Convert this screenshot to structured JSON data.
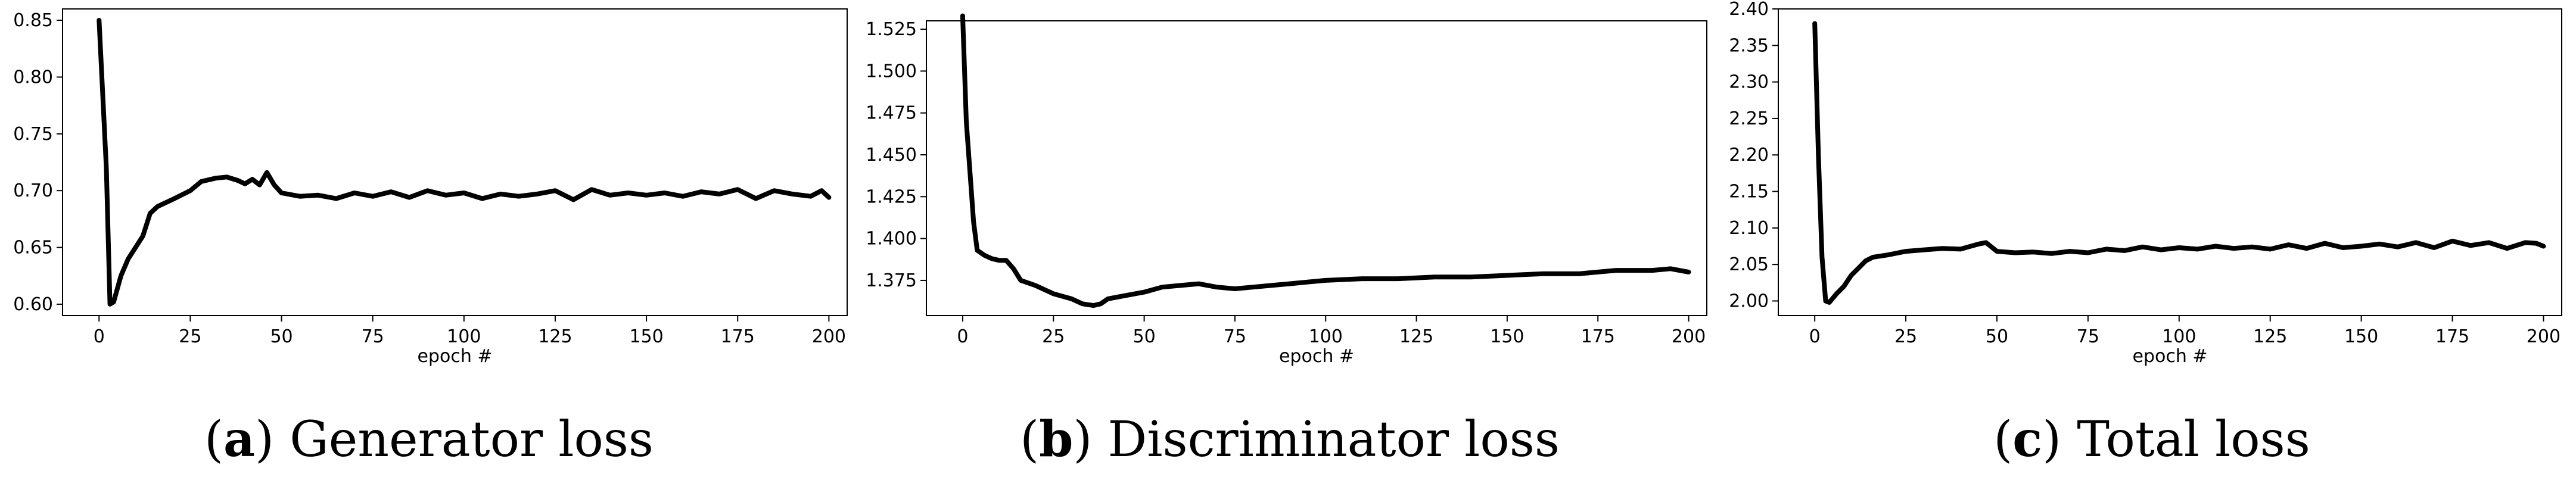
{
  "chart_data": [
    {
      "type": "line",
      "xlabel": "epoch #",
      "xlim": [
        -10,
        205
      ],
      "ylim": [
        0.59,
        0.86
      ],
      "xticks": [
        0,
        25,
        50,
        75,
        100,
        125,
        150,
        175,
        200
      ],
      "yticks": [
        0.6,
        0.65,
        0.7,
        0.75,
        0.8,
        0.85
      ],
      "ytick_decimals": 2,
      "grid": false,
      "caption": {
        "letter": "a",
        "text": "Generator loss"
      },
      "series": [
        {
          "color": "#000000",
          "x": [
            0,
            2,
            3,
            4,
            6,
            8,
            10,
            12,
            14,
            16,
            20,
            25,
            28,
            32,
            35,
            38,
            40,
            42,
            44,
            46,
            48,
            50,
            55,
            60,
            65,
            70,
            75,
            80,
            85,
            90,
            95,
            100,
            105,
            110,
            115,
            120,
            125,
            130,
            135,
            140,
            145,
            150,
            155,
            160,
            165,
            170,
            175,
            180,
            185,
            190,
            195,
            198,
            200
          ],
          "y": [
            0.85,
            0.72,
            0.6,
            0.602,
            0.625,
            0.64,
            0.65,
            0.66,
            0.68,
            0.686,
            0.692,
            0.7,
            0.708,
            0.711,
            0.712,
            0.709,
            0.706,
            0.71,
            0.705,
            0.716,
            0.705,
            0.698,
            0.695,
            0.696,
            0.693,
            0.698,
            0.695,
            0.699,
            0.694,
            0.7,
            0.696,
            0.698,
            0.693,
            0.697,
            0.695,
            0.697,
            0.7,
            0.692,
            0.701,
            0.696,
            0.698,
            0.696,
            0.698,
            0.695,
            0.699,
            0.697,
            0.701,
            0.693,
            0.7,
            0.697,
            0.695,
            0.7,
            0.694
          ]
        }
      ]
    },
    {
      "type": "line",
      "xlabel": "epoch #",
      "xlim": [
        -10,
        205
      ],
      "ylim": [
        1.354,
        1.53
      ],
      "xticks": [
        0,
        25,
        50,
        75,
        100,
        125,
        150,
        175,
        200
      ],
      "yticks": [
        1.375,
        1.4,
        1.425,
        1.45,
        1.475,
        1.5,
        1.525
      ],
      "ytick_decimals": 3,
      "grid": false,
      "caption": {
        "letter": "b",
        "text": "Discriminator loss"
      },
      "series": [
        {
          "color": "#000000",
          "x": [
            0,
            1,
            2,
            3,
            4,
            6,
            8,
            10,
            12,
            14,
            16,
            20,
            25,
            30,
            33,
            36,
            38,
            40,
            45,
            50,
            55,
            60,
            65,
            70,
            75,
            80,
            85,
            90,
            95,
            100,
            110,
            120,
            130,
            140,
            150,
            160,
            170,
            180,
            190,
            195,
            200
          ],
          "y": [
            1.533,
            1.47,
            1.44,
            1.41,
            1.393,
            1.39,
            1.388,
            1.387,
            1.387,
            1.382,
            1.375,
            1.372,
            1.367,
            1.364,
            1.361,
            1.36,
            1.361,
            1.364,
            1.366,
            1.368,
            1.371,
            1.372,
            1.373,
            1.371,
            1.37,
            1.371,
            1.372,
            1.373,
            1.374,
            1.375,
            1.376,
            1.376,
            1.377,
            1.377,
            1.378,
            1.379,
            1.379,
            1.381,
            1.381,
            1.382,
            1.38
          ]
        }
      ]
    },
    {
      "type": "line",
      "xlabel": "epoch #",
      "xlim": [
        -10,
        205
      ],
      "ylim": [
        1.98,
        2.4
      ],
      "xticks": [
        0,
        25,
        50,
        75,
        100,
        125,
        150,
        175,
        200
      ],
      "yticks": [
        2.0,
        2.05,
        2.1,
        2.15,
        2.2,
        2.25,
        2.3,
        2.35,
        2.4
      ],
      "ytick_decimals": 2,
      "grid": false,
      "caption": {
        "letter": "c",
        "text": "Total loss"
      },
      "series": [
        {
          "color": "#000000",
          "x": [
            0,
            1,
            2,
            3,
            4,
            6,
            8,
            10,
            12,
            14,
            16,
            20,
            25,
            30,
            35,
            40,
            45,
            47,
            50,
            55,
            60,
            65,
            70,
            75,
            80,
            85,
            90,
            95,
            100,
            105,
            110,
            115,
            120,
            125,
            130,
            135,
            140,
            145,
            150,
            155,
            160,
            165,
            170,
            175,
            180,
            185,
            190,
            195,
            198,
            200
          ],
          "y": [
            2.38,
            2.2,
            2.06,
            2.0,
            1.998,
            2.01,
            2.02,
            2.035,
            2.045,
            2.055,
            2.06,
            2.063,
            2.068,
            2.07,
            2.072,
            2.071,
            2.078,
            2.08,
            2.068,
            2.066,
            2.067,
            2.065,
            2.068,
            2.066,
            2.071,
            2.069,
            2.074,
            2.07,
            2.073,
            2.071,
            2.075,
            2.072,
            2.074,
            2.071,
            2.077,
            2.072,
            2.079,
            2.073,
            2.075,
            2.078,
            2.074,
            2.08,
            2.073,
            2.082,
            2.076,
            2.08,
            2.072,
            2.08,
            2.079,
            2.075
          ]
        }
      ]
    }
  ]
}
